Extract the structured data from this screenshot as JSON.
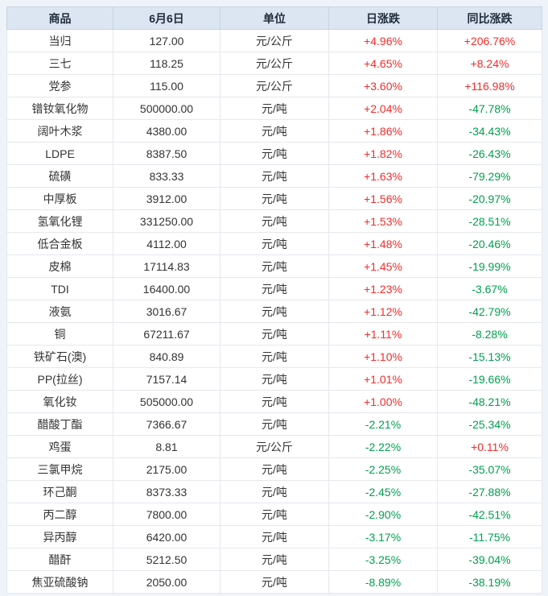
{
  "colors": {
    "page_bg": "#eef3fa",
    "header_bg": "#dce6f2",
    "header_text": "#1f2b3a",
    "body_text": "#333333",
    "positive": "#f62b2b",
    "negative": "#00a04e",
    "row_bg": "#ffffff",
    "border": "#e4e8ee"
  },
  "chart_data": {
    "type": "table",
    "columns": [
      "商品",
      "6月6日",
      "单位",
      "日涨跌",
      "同比涨跌"
    ],
    "rows": [
      [
        "当归",
        "127.00",
        "元/公斤",
        "+4.96%",
        "+206.76%"
      ],
      [
        "三七",
        "118.25",
        "元/公斤",
        "+4.65%",
        "+8.24%"
      ],
      [
        "党参",
        "115.00",
        "元/公斤",
        "+3.60%",
        "+116.98%"
      ],
      [
        "镨钕氧化物",
        "500000.00",
        "元/吨",
        "+2.04%",
        "-47.78%"
      ],
      [
        "阔叶木浆",
        "4380.00",
        "元/吨",
        "+1.86%",
        "-34.43%"
      ],
      [
        "LDPE",
        "8387.50",
        "元/吨",
        "+1.82%",
        "-26.43%"
      ],
      [
        "硫磺",
        "833.33",
        "元/吨",
        "+1.63%",
        "-79.29%"
      ],
      [
        "中厚板",
        "3912.00",
        "元/吨",
        "+1.56%",
        "-20.97%"
      ],
      [
        "氢氧化锂",
        "331250.00",
        "元/吨",
        "+1.53%",
        "-28.51%"
      ],
      [
        "低合金板",
        "4112.00",
        "元/吨",
        "+1.48%",
        "-20.46%"
      ],
      [
        "皮棉",
        "17114.83",
        "元/吨",
        "+1.45%",
        "-19.99%"
      ],
      [
        "TDI",
        "16400.00",
        "元/吨",
        "+1.23%",
        "-3.67%"
      ],
      [
        "液氨",
        "3016.67",
        "元/吨",
        "+1.12%",
        "-42.79%"
      ],
      [
        "铜",
        "67211.67",
        "元/吨",
        "+1.11%",
        "-8.28%"
      ],
      [
        "铁矿石(澳)",
        "840.89",
        "元/吨",
        "+1.10%",
        "-15.13%"
      ],
      [
        "PP(拉丝)",
        "7157.14",
        "元/吨",
        "+1.01%",
        "-19.66%"
      ],
      [
        "氧化钕",
        "505000.00",
        "元/吨",
        "+1.00%",
        "-48.21%"
      ],
      [
        "醋酸丁酯",
        "7366.67",
        "元/吨",
        "-2.21%",
        "-25.34%"
      ],
      [
        "鸡蛋",
        "8.81",
        "元/公斤",
        "-2.22%",
        "+0.11%"
      ],
      [
        "三氯甲烷",
        "2175.00",
        "元/吨",
        "-2.25%",
        "-35.07%"
      ],
      [
        "环己酮",
        "8373.33",
        "元/吨",
        "-2.45%",
        "-27.88%"
      ],
      [
        "丙二醇",
        "7800.00",
        "元/吨",
        "-2.90%",
        "-42.51%"
      ],
      [
        "异丙醇",
        "6420.00",
        "元/吨",
        "-3.17%",
        "-11.75%"
      ],
      [
        "醋酐",
        "5212.50",
        "元/吨",
        "-3.25%",
        "-39.04%"
      ],
      [
        "焦亚硫酸钠",
        "2050.00",
        "元/吨",
        "-8.89%",
        "-38.19%"
      ]
    ]
  }
}
